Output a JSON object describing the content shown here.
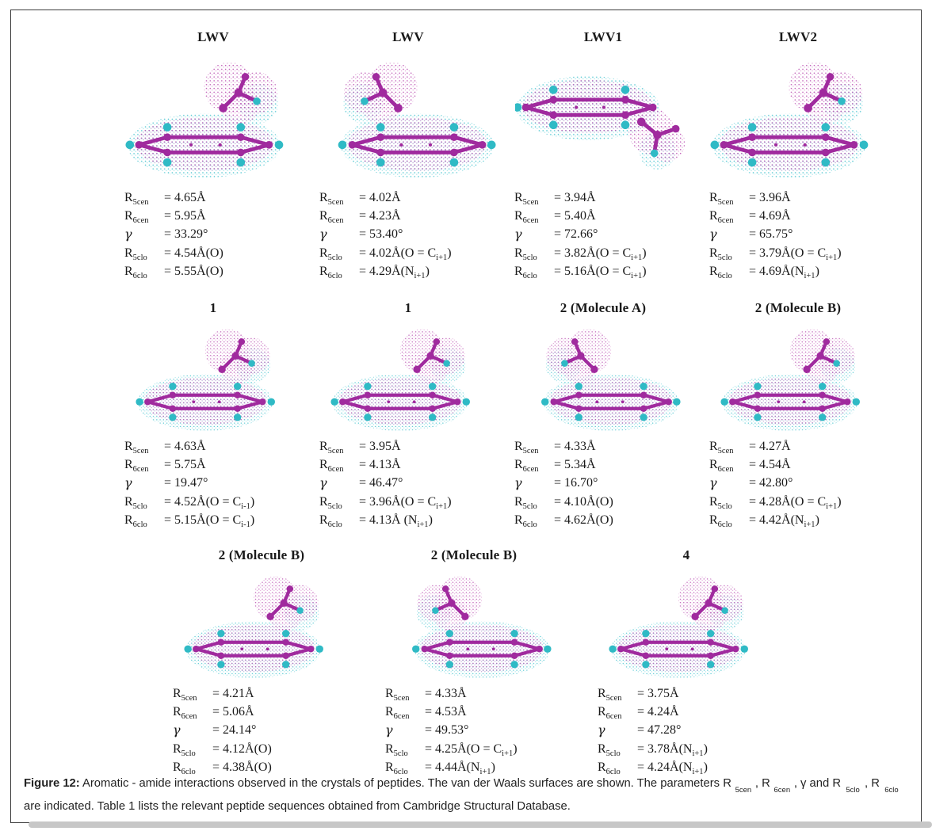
{
  "figure": {
    "caption_label": "Figure 12:",
    "caption_parts": [
      {
        "t": " Aromatic - amide interactions observed in the crystals of peptides. The van der Waals surfaces are shown. The parameters R"
      },
      {
        "b": "5cen"
      },
      {
        "t": ", R"
      },
      {
        "b": "6cen"
      },
      {
        "t": ", γ and R"
      },
      {
        "b": "5clo"
      },
      {
        "t": ", R"
      },
      {
        "b": "6clo"
      },
      {
        "t": " are indicated. Table 1 lists the relevant peptide sequences obtained from Cambridge Structural Database."
      }
    ]
  },
  "colors": {
    "stick_magenta": "#a02a9e",
    "atom_cyan": "#2fbac5",
    "surface_magenta_dots": "#c05fb8",
    "surface_cyan_dots": "#55c8d2"
  },
  "rows": [
    {
      "panels": [
        {
          "title": "LWV",
          "art": "a",
          "params": [
            {
              "sym": "R",
              "sub": "5cen",
              "value": [
                {
                  "t": "= 4.65Å"
                }
              ]
            },
            {
              "sym": "R",
              "sub": "6cen",
              "value": [
                {
                  "t": "= 5.95Å"
                }
              ]
            },
            {
              "sym": "γ",
              "sub": "",
              "value": [
                {
                  "t": "= 33.29°"
                }
              ]
            },
            {
              "sym": "R",
              "sub": "5clo",
              "value": [
                {
                  "t": "= 4.54Å(O)"
                }
              ]
            },
            {
              "sym": "R",
              "sub": "6clo",
              "value": [
                {
                  "t": "= 5.55Å(O)"
                }
              ]
            }
          ]
        },
        {
          "title": "LWV",
          "art": "af",
          "params": [
            {
              "sym": "R",
              "sub": "5cen",
              "value": [
                {
                  "t": "= 4.02Å"
                }
              ]
            },
            {
              "sym": "R",
              "sub": "6cen",
              "value": [
                {
                  "t": "= 4.23Å"
                }
              ]
            },
            {
              "sym": "γ",
              "sub": "",
              "value": [
                {
                  "t": "= 53.40°"
                }
              ]
            },
            {
              "sym": "R",
              "sub": "5clo",
              "value": [
                {
                  "t": "= 4.02Å(O = C"
                },
                {
                  "b": "i+1"
                },
                {
                  "t": ")"
                }
              ]
            },
            {
              "sym": "R",
              "sub": "6clo",
              "value": [
                {
                  "t": "= 4.29Å(N"
                },
                {
                  "b": "i+1"
                },
                {
                  "t": ")"
                }
              ]
            }
          ]
        },
        {
          "title": "LWV1",
          "art": "b",
          "params": [
            {
              "sym": "R",
              "sub": "5cen",
              "value": [
                {
                  "t": "= 3.94Å"
                }
              ]
            },
            {
              "sym": "R",
              "sub": "6cen",
              "value": [
                {
                  "t": "= 5.40Å"
                }
              ]
            },
            {
              "sym": "γ",
              "sub": "",
              "value": [
                {
                  "t": "= 72.66°"
                }
              ]
            },
            {
              "sym": "R",
              "sub": "5clo",
              "value": [
                {
                  "t": "= 3.82Å(O = C"
                },
                {
                  "b": "i+1"
                },
                {
                  "t": ")"
                }
              ]
            },
            {
              "sym": "R",
              "sub": "6clo",
              "value": [
                {
                  "t": "= 5.16Å(O = C"
                },
                {
                  "b": "i+1"
                },
                {
                  "t": ")"
                }
              ]
            }
          ]
        },
        {
          "title": "LWV2",
          "art": "a",
          "params": [
            {
              "sym": "R",
              "sub": "5cen",
              "value": [
                {
                  "t": "= 3.96Å"
                }
              ]
            },
            {
              "sym": "R",
              "sub": "6cen",
              "value": [
                {
                  "t": "= 4.69Å"
                }
              ]
            },
            {
              "sym": "γ",
              "sub": "",
              "value": [
                {
                  "t": "= 65.75°"
                }
              ]
            },
            {
              "sym": "R",
              "sub": "5clo",
              "value": [
                {
                  "t": "= 3.79Å(O = C"
                },
                {
                  "b": "i+1"
                },
                {
                  "t": ")"
                }
              ]
            },
            {
              "sym": "R",
              "sub": "6clo",
              "value": [
                {
                  "t": "= 4.69Å(N"
                },
                {
                  "b": "i+1"
                },
                {
                  "t": ")"
                }
              ]
            }
          ]
        }
      ]
    },
    {
      "panels": [
        {
          "title": "1",
          "art": "a",
          "params": [
            {
              "sym": "R",
              "sub": "5cen",
              "value": [
                {
                  "t": "= 4.63Å"
                }
              ]
            },
            {
              "sym": "R",
              "sub": "6cen",
              "value": [
                {
                  "t": "= 5.75Å"
                }
              ]
            },
            {
              "sym": "γ",
              "sub": "",
              "value": [
                {
                  "t": "= 19.47°"
                }
              ]
            },
            {
              "sym": "R",
              "sub": "5clo",
              "value": [
                {
                  "t": "= 4.52Å(O = C"
                },
                {
                  "b": "i-1"
                },
                {
                  "t": ")"
                }
              ]
            },
            {
              "sym": "R",
              "sub": "6clo",
              "value": [
                {
                  "t": "= 5.15Å(O = C"
                },
                {
                  "b": "i-1"
                },
                {
                  "t": ")"
                }
              ]
            }
          ]
        },
        {
          "title": "1",
          "art": "a",
          "params": [
            {
              "sym": "R",
              "sub": "5cen",
              "value": [
                {
                  "t": "= 3.95Å"
                }
              ]
            },
            {
              "sym": "R",
              "sub": "6cen",
              "value": [
                {
                  "t": "= 4.13Å"
                }
              ]
            },
            {
              "sym": "γ",
              "sub": "",
              "value": [
                {
                  "t": "= 46.47°"
                }
              ]
            },
            {
              "sym": "R",
              "sub": "5clo",
              "value": [
                {
                  "t": "= 3.96Å(O = C"
                },
                {
                  "b": "i+1"
                },
                {
                  "t": ")"
                }
              ]
            },
            {
              "sym": "R",
              "sub": "6clo",
              "value": [
                {
                  "t": "= 4.13Å (N"
                },
                {
                  "b": "i+1"
                },
                {
                  "t": ")"
                }
              ]
            }
          ]
        },
        {
          "title": "2 (Molecule A)",
          "art": "af",
          "params": [
            {
              "sym": "R",
              "sub": "5cen",
              "value": [
                {
                  "t": "= 4.33Å"
                }
              ]
            },
            {
              "sym": "R",
              "sub": "6cen",
              "value": [
                {
                  "t": "= 5.34Å"
                }
              ]
            },
            {
              "sym": "γ",
              "sub": "",
              "value": [
                {
                  "t": "= 16.70°"
                }
              ]
            },
            {
              "sym": "R",
              "sub": "5clo",
              "value": [
                {
                  "t": "= 4.10Å(O)"
                }
              ]
            },
            {
              "sym": "R",
              "sub": "6clo",
              "value": [
                {
                  "t": "= 4.62Å(O)"
                }
              ]
            }
          ]
        },
        {
          "title": "2 (Molecule B)",
          "art": "a",
          "params": [
            {
              "sym": "R",
              "sub": "5cen",
              "value": [
                {
                  "t": "= 4.27Å"
                }
              ]
            },
            {
              "sym": "R",
              "sub": "6cen",
              "value": [
                {
                  "t": "= 4.54Å"
                }
              ]
            },
            {
              "sym": "γ",
              "sub": "",
              "value": [
                {
                  "t": "= 42.80°"
                }
              ]
            },
            {
              "sym": "R",
              "sub": "5clo",
              "value": [
                {
                  "t": "= 4.28Å(O = C"
                },
                {
                  "b": "i+1"
                },
                {
                  "t": ")"
                }
              ]
            },
            {
              "sym": "R",
              "sub": "6clo",
              "value": [
                {
                  "t": "= 4.42Å(N"
                },
                {
                  "b": "i+1"
                },
                {
                  "t": ")"
                }
              ]
            }
          ]
        }
      ]
    },
    {
      "panels": [
        {
          "title": "2 (Molecule B)",
          "art": "a",
          "params": [
            {
              "sym": "R",
              "sub": "5cen",
              "value": [
                {
                  "t": "= 4.21Å"
                }
              ]
            },
            {
              "sym": "R",
              "sub": "6cen",
              "value": [
                {
                  "t": "= 5.06Å"
                }
              ]
            },
            {
              "sym": "γ",
              "sub": "",
              "value": [
                {
                  "t": "= 24.14°"
                }
              ]
            },
            {
              "sym": "R",
              "sub": "5clo",
              "value": [
                {
                  "t": "= 4.12Å(O)"
                }
              ]
            },
            {
              "sym": "R",
              "sub": "6clo",
              "value": [
                {
                  "t": "= 4.38Å(O)"
                }
              ]
            }
          ]
        },
        {
          "title": "2 (Molecule B)",
          "art": "af",
          "params": [
            {
              "sym": "R",
              "sub": "5cen",
              "value": [
                {
                  "t": "= 4.33Å"
                }
              ]
            },
            {
              "sym": "R",
              "sub": "6cen",
              "value": [
                {
                  "t": "= 4.53Å"
                }
              ]
            },
            {
              "sym": "γ",
              "sub": "",
              "value": [
                {
                  "t": "= 49.53°"
                }
              ]
            },
            {
              "sym": "R",
              "sub": "5clo",
              "value": [
                {
                  "t": "= 4.25Å(O = C"
                },
                {
                  "b": "i+1"
                },
                {
                  "t": ")"
                }
              ]
            },
            {
              "sym": "R",
              "sub": "6clo",
              "value": [
                {
                  "t": "= 4.44Å(N"
                },
                {
                  "b": "i+1"
                },
                {
                  "t": ")"
                }
              ]
            }
          ]
        },
        {
          "title": "4",
          "art": "a",
          "params": [
            {
              "sym": "R",
              "sub": "5cen",
              "value": [
                {
                  "t": "= 3.75Å"
                }
              ]
            },
            {
              "sym": "R",
              "sub": "6cen",
              "value": [
                {
                  "t": "= 4.24Å"
                }
              ]
            },
            {
              "sym": "γ",
              "sub": "",
              "value": [
                {
                  "t": "= 47.28°"
                }
              ]
            },
            {
              "sym": "R",
              "sub": "5clo",
              "value": [
                {
                  "t": "= 3.78Å(N"
                },
                {
                  "b": "i+1"
                },
                {
                  "t": ")"
                }
              ]
            },
            {
              "sym": "R",
              "sub": "6clo",
              "value": [
                {
                  "t": "= 4.24Å(N"
                },
                {
                  "b": "i+1"
                },
                {
                  "t": ")"
                }
              ]
            }
          ]
        }
      ]
    }
  ]
}
